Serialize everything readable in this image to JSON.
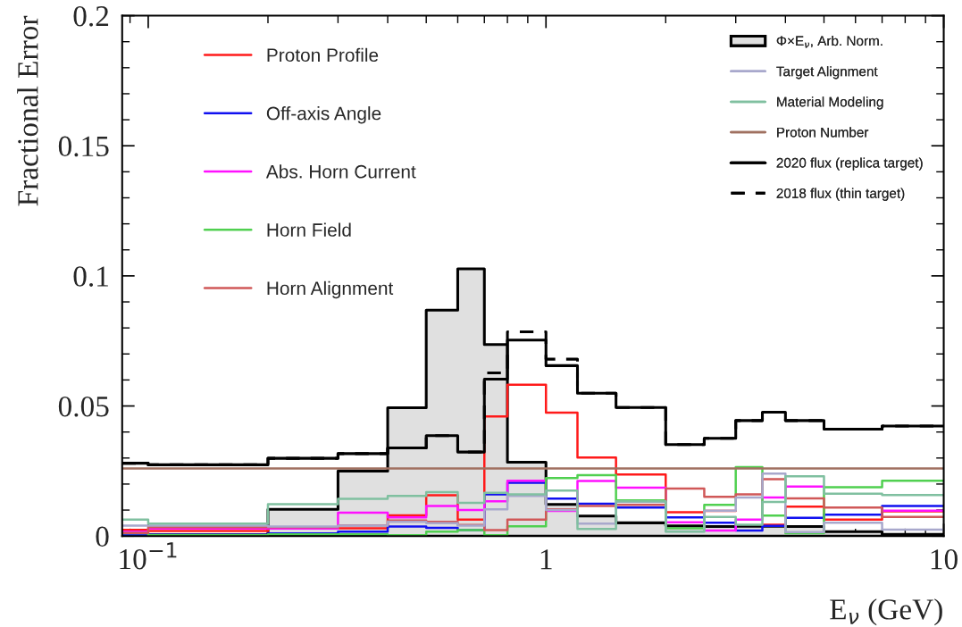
{
  "chart_data": {
    "type": "step",
    "xlabel": "E$_{ν}$ (GeV)",
    "ylabel": "Fractional Error",
    "x": [
      0.086,
      0.1,
      0.2,
      0.3,
      0.4,
      0.5,
      0.6,
      0.7,
      0.8,
      1.0,
      1.2,
      1.5,
      2,
      2.5,
      3,
      3.5,
      4,
      5,
      7,
      10
    ],
    "log": "x",
    "xlim": [
      0.086,
      10
    ],
    "xticks": [
      {
        "value": 0.1,
        "label": "10$^{−1}$"
      },
      1,
      10
    ],
    "ylim": [
      0,
      0.2
    ],
    "yticks": [
      0,
      0.05,
      0.1,
      0.15,
      0.2
    ],
    "grid": false,
    "legend": "top",
    "series": [
      {
        "name": "Proton Profile",
        "color": "#ff1a1a",
        "values": [
          0.0024,
          0.002,
          0.003,
          0.003,
          0.008,
          0.0157,
          0.0063,
          0.046,
          0.0582,
          0.0474,
          0.0302,
          0.0237,
          0.0092,
          0.0097,
          null,
          0.0044,
          0.0113,
          0.0063,
          0.0095,
          0.0095
        ]
      },
      {
        "name": "Off-axis Angle",
        "color": "#1010f0",
        "values": [
          0.0005,
          0.0005,
          0.001,
          0.0017,
          0.0037,
          0.0032,
          0.0023,
          0.016,
          0.0205,
          0.0144,
          0.0124,
          0.011,
          0.0072,
          0.0051,
          0.0021,
          0.0039,
          0.007,
          0.0082,
          0.0116,
          0.0116
        ]
      },
      {
        "name": "Abs. Horn Current",
        "color": "#ff10ff",
        "values": [
          0.0017,
          0.0029,
          0.0029,
          0.009,
          0.0072,
          0.0116,
          0.01,
          0.0134,
          0.0213,
          0.0097,
          0.0212,
          0.0186,
          0.0053,
          0.0021,
          0.0063,
          0.0148,
          0.019,
          null,
          0.0098,
          0.0098
        ]
      },
      {
        "name": "Horn Field",
        "color": "#50d050",
        "values": [
          0.0011,
          0.0003,
          0.0007,
          0.0007,
          0.0003,
          0.0017,
          0.0023,
          0.0003,
          0.0038,
          0.0223,
          0.0234,
          0.0137,
          0.003,
          0.012,
          0.0265,
          0.0079,
          0.0011,
          0.0188,
          0.0213,
          0.0213
        ]
      },
      {
        "name": "Horn Alignment",
        "color": "#d05858",
        "values": [
          0.0012,
          0.0034,
          0.0034,
          0.0041,
          0.006,
          0.0055,
          0.0043,
          0.0023,
          0.0063,
          0.0103,
          0.0116,
          0.012,
          0.0183,
          0.0151,
          0.016,
          0.0219,
          0.0145,
          0.011,
          0.0074,
          0.0074
        ]
      },
      {
        "name": "Φ×E$_{ν}$, Arb. Norm.",
        "type": "area",
        "color": "#e0e0e0",
        "values": [
          0.0005,
          0.0005,
          0.0103,
          0.025,
          0.0493,
          0.0868,
          0.1027,
          0.0736,
          0.0284,
          0.0122,
          0.0077,
          0.0051,
          0.0039,
          0.0037,
          0.0038,
          0.0038,
          0.0037,
          0.0017,
          0.0007,
          0.0007
        ]
      },
      {
        "name": "Target Alignment",
        "color": "#a8a8cc",
        "values": [
          0.004,
          0.004,
          0.0037,
          0.004,
          0.0055,
          0.005,
          0.004,
          0.0103,
          0.0154,
          0.01,
          0.0048,
          0.0131,
          0.0018,
          0.0098,
          0.0148,
          0.024,
          0.0015,
          0.0051,
          0.0025,
          0.0025
        ]
      },
      {
        "name": "Material Modeling",
        "color": "#80c0a0",
        "values": [
          0.0063,
          0.0048,
          0.0123,
          0.0143,
          0.0154,
          0.0169,
          0.0128,
          0.0166,
          0.016,
          0.0175,
          0.0027,
          0.0134,
          0.0017,
          0.0074,
          0.0044,
          0.0131,
          0.023,
          0.0163,
          0.0158,
          0.0158
        ]
      },
      {
        "name": "Proton Number",
        "color": "#a07060",
        "values": [
          0.026,
          0.026,
          0.026,
          0.026,
          0.026,
          0.026,
          0.026,
          0.026,
          0.026,
          0.026,
          0.026,
          0.026,
          0.026,
          0.026,
          0.026,
          0.026,
          0.026,
          0.026,
          0.026,
          0.026
        ]
      },
      {
        "name": "2020 flux (replica target)",
        "color": "#000000",
        "values": [
          0.028,
          0.0274,
          0.0299,
          0.0317,
          0.0339,
          0.0386,
          0.0323,
          0.0603,
          0.0753,
          0.0655,
          0.0549,
          0.0494,
          0.0352,
          0.0376,
          0.0444,
          0.0476,
          0.0444,
          0.0411,
          0.0423,
          0.0423
        ]
      },
      {
        "name": "2018 flux (thin target)",
        "color": "#000000",
        "line_style": "dashed",
        "values": [
          0.028,
          0.0274,
          0.0299,
          0.0317,
          0.0339,
          0.0386,
          0.0323,
          0.0627,
          0.0785,
          0.068,
          0.0549,
          0.0494,
          0.0352,
          0.0376,
          0.0444,
          0.0476,
          0.0444,
          0.0411,
          0.0423,
          0.0423
        ]
      }
    ]
  }
}
